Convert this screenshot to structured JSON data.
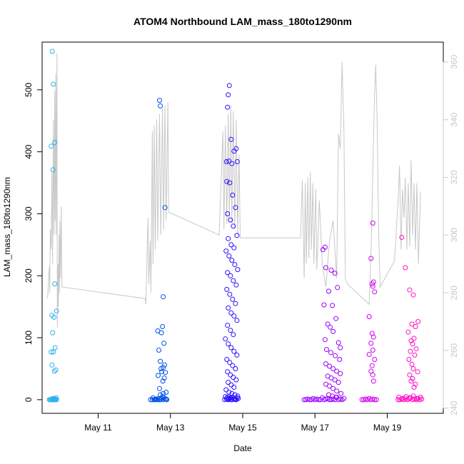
{
  "chart_data": {
    "type": "scatter",
    "title": "ATOM4 Northbound LAM_mass_180to1290nm",
    "xlabel": "Date",
    "ylabel": "LAM_mass_180to1290nm",
    "x_ticks": [
      "May 11",
      "May 13",
      "May 15",
      "May 17",
      "May 19"
    ],
    "y_ticks": [
      "0",
      "100",
      "200",
      "300",
      "400",
      "500"
    ],
    "y2_ticks": [
      "240",
      "260",
      "280",
      "300",
      "320",
      "340",
      "360"
    ],
    "xlim": [
      9.45,
      20.55
    ],
    "ylim": [
      -22,
      577
    ],
    "y2lim": [
      238.2,
      366.9
    ],
    "grid": false,
    "colors": {
      "axis": "#000000",
      "secondary_axis": "#c8c8c8",
      "secondary_line": "#c8c8c8",
      "c1": "#2ab0f0",
      "c2": "#0050e6",
      "c3": "#2a10ff",
      "c4": "#9a00ff",
      "c5": "#d000f0",
      "c6": "#ff10c8"
    },
    "series": [
      {
        "color_key": "c1",
        "x": [
          9.65,
          9.7,
          9.72,
          9.74,
          9.76,
          9.78,
          9.8,
          9.82,
          9.84,
          9.68,
          9.72,
          9.75,
          9.79,
          9.82,
          9.85,
          9.73,
          9.76,
          9.8,
          9.7,
          9.75,
          9.8,
          9.85,
          9.72,
          9.78,
          9.74,
          9.81,
          9.7,
          9.76,
          9.72,
          9.83,
          9.79
        ],
        "y": [
          0,
          0,
          1,
          0,
          2,
          0,
          1,
          0,
          3,
          0,
          1,
          0,
          0,
          1,
          0,
          562,
          509,
          415,
          409,
          371,
          187,
          143,
          136,
          133,
          108,
          84,
          77,
          77,
          56,
          48,
          46
        ]
      },
      {
        "color_key": "c2",
        "x": [
          12.45,
          12.5,
          12.55,
          12.6,
          12.65,
          12.7,
          12.75,
          12.8,
          12.85,
          12.9,
          12.52,
          12.58,
          12.62,
          12.68,
          12.72,
          12.78,
          12.82,
          12.88,
          12.7,
          12.72,
          12.85,
          12.8,
          12.65,
          12.78,
          12.75,
          12.82,
          12.68,
          12.72,
          12.84,
          12.8,
          12.74,
          12.86,
          12.76,
          12.66,
          12.83,
          12.79,
          12.7,
          12.88,
          12.8,
          12.72
        ],
        "y": [
          0,
          0,
          0,
          1,
          0,
          0,
          2,
          0,
          1,
          0,
          3,
          0,
          1,
          2,
          0,
          5,
          3,
          1,
          483,
          474,
          310,
          166,
          111,
          118,
          108,
          91,
          80,
          62,
          56,
          52,
          50,
          44,
          45,
          39,
          35,
          30,
          18,
          12,
          10,
          8
        ]
      },
      {
        "color_key": "c3",
        "x": [
          14.5,
          14.55,
          14.6,
          14.65,
          14.7,
          14.75,
          14.8,
          14.85,
          14.52,
          14.58,
          14.62,
          14.68,
          14.72,
          14.78,
          14.82,
          14.88,
          14.63,
          14.6,
          14.58,
          14.82,
          14.76,
          14.68,
          14.55,
          14.62,
          14.85,
          14.7,
          14.56,
          14.64,
          14.72,
          14.8,
          14.58,
          14.66,
          14.74,
          14.84,
          14.6,
          14.68,
          14.76,
          14.54,
          14.62,
          14.7,
          14.78,
          14.86,
          14.58,
          14.66,
          14.74,
          14.82,
          14.56,
          14.64,
          14.72,
          14.8,
          14.6,
          14.68,
          14.76,
          14.84,
          14.58,
          14.66,
          14.74,
          14.52,
          14.6,
          14.68,
          14.76,
          14.84,
          14.56,
          14.64,
          14.72,
          14.8,
          14.58,
          14.66,
          14.74,
          14.82,
          14.6,
          14.68,
          14.76,
          14.54,
          14.62,
          14.7,
          14.78,
          14.86,
          14.58,
          14.66
        ],
        "y": [
          0,
          1,
          0,
          2,
          0,
          1,
          0,
          3,
          5,
          2,
          1,
          0,
          4,
          1,
          0,
          2,
          507,
          492,
          472,
          405,
          401,
          420,
          384,
          385,
          384,
          381,
          352,
          350,
          330,
          310,
          300,
          290,
          280,
          265,
          260,
          250,
          245,
          240,
          232,
          225,
          218,
          210,
          205,
          200,
          192,
          185,
          178,
          170,
          162,
          155,
          148,
          140,
          135,
          128,
          120,
          112,
          105,
          98,
          90,
          84,
          78,
          72,
          65,
          60,
          55,
          50,
          45,
          40,
          36,
          32,
          28,
          24,
          20,
          16,
          12,
          10,
          8,
          6,
          4,
          3
        ]
      },
      {
        "color_key": "c4",
        "x": [
          16.7,
          16.75,
          16.8,
          16.85,
          16.9,
          16.95,
          17.0,
          17.05,
          17.1,
          17.15,
          17.2,
          17.25,
          17.3,
          17.35,
          17.4,
          17.45,
          17.5,
          17.55,
          17.6,
          17.65,
          17.7,
          17.75,
          17.8,
          17.28,
          17.22,
          17.3,
          17.45,
          17.55,
          17.62,
          17.38,
          17.25,
          17.48,
          17.58,
          17.35,
          17.42,
          17.5,
          17.28,
          17.65,
          17.7,
          17.32,
          17.44,
          17.56,
          17.68,
          17.3,
          17.4,
          17.5,
          17.6,
          17.7,
          17.35,
          17.45,
          17.55,
          17.65,
          17.3,
          17.4,
          17.5,
          17.6,
          17.72,
          17.38,
          17.48,
          17.58
        ],
        "y": [
          0,
          0,
          1,
          0,
          0,
          2,
          0,
          1,
          0,
          0,
          3,
          0,
          1,
          2,
          0,
          0,
          1,
          0,
          4,
          0,
          1,
          0,
          2,
          246,
          242,
          213,
          209,
          204,
          181,
          175,
          153,
          152,
          131,
          122,
          117,
          110,
          97,
          92,
          84,
          81,
          76,
          71,
          65,
          58,
          54,
          50,
          46,
          42,
          38,
          35,
          32,
          28,
          25,
          22,
          18,
          14,
          10,
          8,
          6,
          4
        ]
      },
      {
        "color_key": "c5",
        "x": [
          18.3,
          18.35,
          18.4,
          18.45,
          18.5,
          18.55,
          18.6,
          18.65,
          18.7,
          18.6,
          18.55,
          18.62,
          18.58,
          18.6,
          18.65,
          18.5,
          18.58,
          18.62,
          18.55,
          18.6,
          18.5,
          18.65,
          18.58,
          18.55,
          18.6,
          18.62
        ],
        "y": [
          0,
          0,
          1,
          0,
          2,
          0,
          1,
          0,
          0,
          285,
          228,
          190,
          187,
          183,
          174,
          134,
          107,
          101,
          91,
          80,
          73,
          65,
          55,
          46,
          40,
          30
        ]
      },
      {
        "color_key": "c6",
        "x": [
          19.3,
          19.35,
          19.4,
          19.45,
          19.5,
          19.55,
          19.6,
          19.65,
          19.7,
          19.75,
          19.8,
          19.85,
          19.9,
          19.95,
          19.32,
          19.42,
          19.52,
          19.62,
          19.72,
          19.82,
          19.92,
          19.4,
          19.5,
          19.62,
          19.72,
          19.85,
          19.68,
          19.78,
          19.58,
          19.74,
          19.66,
          19.7,
          19.8,
          19.64,
          19.76,
          19.6,
          19.68,
          19.72,
          19.84,
          19.62,
          19.7,
          19.66,
          19.78,
          19.74
        ],
        "y": [
          0,
          0,
          1,
          0,
          2,
          0,
          1,
          3,
          0,
          1,
          0,
          2,
          0,
          1,
          4,
          2,
          5,
          3,
          6,
          2,
          4,
          262,
          213,
          177,
          169,
          126,
          122,
          118,
          109,
          99,
          95,
          90,
          82,
          78,
          72,
          65,
          57,
          50,
          45,
          40,
          34,
          30,
          25,
          20
        ]
      }
    ],
    "secondary_line": {
      "color_key": "secondary_line",
      "points": [
        [
          9.6,
          278
        ],
        [
          9.65,
          289
        ],
        [
          9.66,
          280
        ],
        [
          9.68,
          302
        ],
        [
          9.7,
          295
        ],
        [
          9.72,
          322
        ],
        [
          9.74,
          290
        ],
        [
          9.76,
          340
        ],
        [
          9.78,
          300
        ],
        [
          9.8,
          350
        ],
        [
          9.81,
          305
        ],
        [
          9.83,
          356
        ],
        [
          9.84,
          300
        ],
        [
          9.86,
          363
        ],
        [
          9.87,
          268
        ],
        [
          9.89,
          290
        ],
        [
          9.9,
          275
        ],
        [
          9.92,
          300
        ],
        [
          9.93,
          280
        ],
        [
          9.94,
          305
        ],
        [
          9.96,
          285
        ],
        [
          9.98,
          310
        ],
        [
          10.0,
          282
        ],
        [
          12.3,
          278
        ],
        [
          12.32,
          276
        ],
        [
          12.38,
          306
        ],
        [
          12.4,
          283
        ],
        [
          12.44,
          298
        ],
        [
          12.46,
          280
        ],
        [
          12.5,
          336
        ],
        [
          12.52,
          290
        ],
        [
          12.55,
          338
        ],
        [
          12.58,
          295
        ],
        [
          12.62,
          340
        ],
        [
          12.65,
          298
        ],
        [
          12.7,
          342
        ],
        [
          12.73,
          300
        ],
        [
          12.78,
          344
        ],
        [
          12.81,
          302
        ],
        [
          12.85,
          345
        ],
        [
          12.88,
          305
        ],
        [
          12.93,
          346
        ],
        [
          12.95,
          308
        ],
        [
          14.35,
          300
        ],
        [
          14.45,
          336
        ],
        [
          14.48,
          302
        ],
        [
          14.52,
          338
        ],
        [
          14.56,
          304
        ],
        [
          14.6,
          342
        ],
        [
          14.63,
          306
        ],
        [
          14.67,
          345
        ],
        [
          14.7,
          304
        ],
        [
          14.74,
          343
        ],
        [
          14.78,
          302
        ],
        [
          14.82,
          340
        ],
        [
          14.86,
          300
        ],
        [
          14.9,
          328
        ],
        [
          14.93,
          299
        ],
        [
          16.6,
          299
        ],
        [
          16.65,
          319
        ],
        [
          16.7,
          285
        ],
        [
          16.73,
          318
        ],
        [
          16.76,
          290
        ],
        [
          16.8,
          320
        ],
        [
          16.83,
          292
        ],
        [
          16.87,
          322
        ],
        [
          16.9,
          295
        ],
        [
          16.94,
          318
        ],
        [
          16.97,
          290
        ],
        [
          17.02,
          316
        ],
        [
          17.05,
          288
        ],
        [
          17.12,
          312
        ],
        [
          17.2,
          290
        ],
        [
          17.3,
          282
        ],
        [
          17.4,
          298
        ],
        [
          17.5,
          305
        ],
        [
          17.6,
          285
        ],
        [
          17.65,
          335
        ],
        [
          17.7,
          330
        ],
        [
          17.75,
          360
        ],
        [
          17.8,
          336
        ],
        [
          17.84,
          285
        ],
        [
          17.9,
          283
        ],
        [
          18.5,
          276
        ],
        [
          18.56,
          298
        ],
        [
          18.6,
          322
        ],
        [
          18.64,
          345
        ],
        [
          18.68,
          359
        ],
        [
          18.72,
          340
        ],
        [
          18.76,
          302
        ],
        [
          18.8,
          282
        ],
        [
          19.2,
          291
        ],
        [
          19.3,
          312
        ],
        [
          19.34,
          324
        ],
        [
          19.38,
          295
        ],
        [
          19.42,
          316
        ],
        [
          19.46,
          306
        ],
        [
          19.5,
          320
        ],
        [
          19.54,
          295
        ],
        [
          19.58,
          318
        ],
        [
          19.62,
          296
        ],
        [
          19.66,
          326
        ],
        [
          19.7,
          300
        ],
        [
          19.74,
          318
        ],
        [
          19.78,
          295
        ],
        [
          19.82,
          318
        ],
        [
          19.86,
          290
        ],
        [
          19.92,
          315
        ]
      ]
    }
  }
}
